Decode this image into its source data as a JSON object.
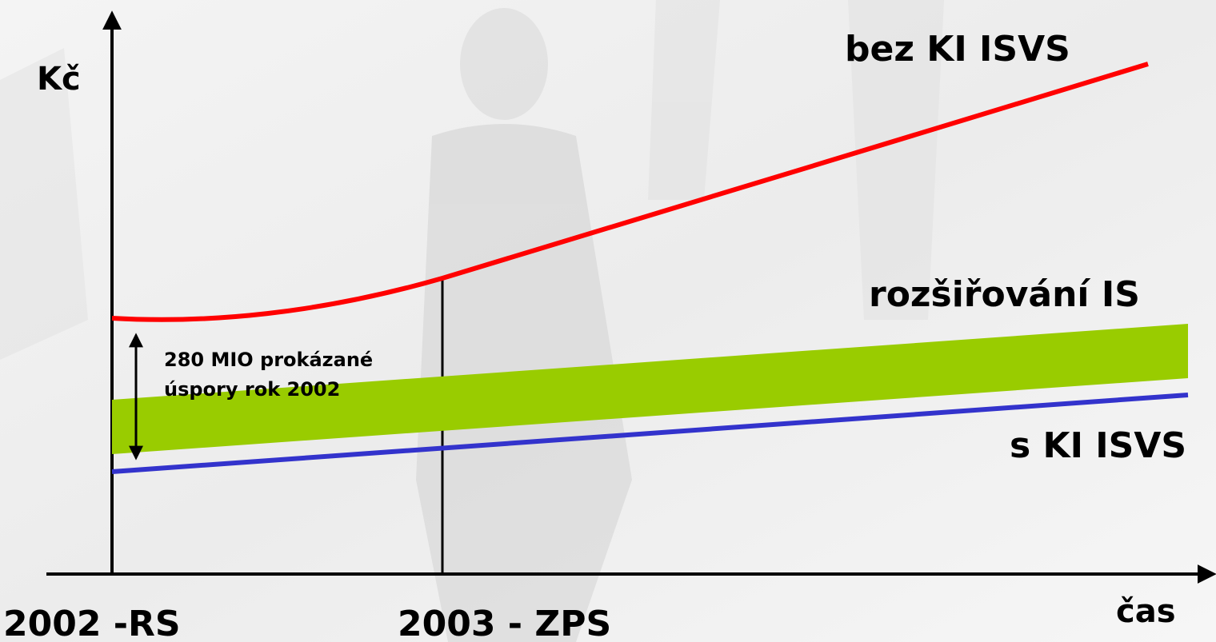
{
  "y_axis_label": "Kč",
  "x_axis_label": "čas",
  "lines": [
    {
      "label": "bez KI ISVS"
    },
    {
      "label": "rozšiřování IS"
    },
    {
      "label": "s KI ISVS"
    }
  ],
  "annotation": {
    "line1": "280 MIO prokázané",
    "line2": "úspory rok 2002"
  },
  "milestones": [
    "2002 -RS",
    "2003 - ZPS"
  ]
}
